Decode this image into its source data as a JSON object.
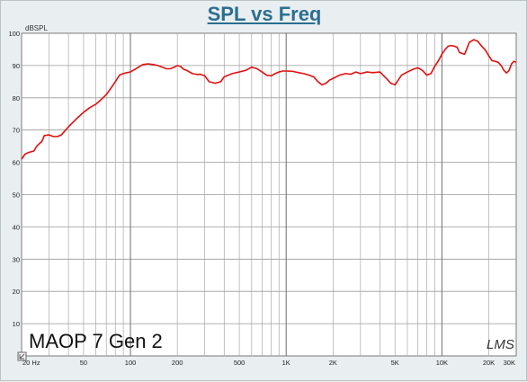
{
  "chart_data": {
    "type": "line",
    "title": "SPL vs Freq",
    "ylabel": "dBSPL",
    "xlabel": "",
    "x_scale": "log",
    "xlim": [
      20,
      30000
    ],
    "ylim": [
      0,
      100
    ],
    "grid": true,
    "y_ticks": [
      10,
      20,
      30,
      40,
      50,
      60,
      70,
      80,
      90,
      100
    ],
    "x_ticks": [
      {
        "value": 20,
        "label": "20 Hz"
      },
      {
        "value": 50,
        "label": "50"
      },
      {
        "value": 100,
        "label": "100"
      },
      {
        "value": 200,
        "label": "200"
      },
      {
        "value": 500,
        "label": "500"
      },
      {
        "value": 1000,
        "label": "1K"
      },
      {
        "value": 2000,
        "label": "2K"
      },
      {
        "value": 5000,
        "label": "5K"
      },
      {
        "value": 10000,
        "label": "10K"
      },
      {
        "value": 20000,
        "label": "20K"
      },
      {
        "value": 30000,
        "label": "30K"
      }
    ],
    "annotation": "MAOP 7 Gen 2",
    "watermark": "LMS",
    "series": [
      {
        "color": "#e01010",
        "x": [
          20,
          21,
          22,
          24,
          25,
          27,
          28,
          30,
          32,
          34,
          36,
          40,
          45,
          50,
          55,
          60,
          65,
          70,
          75,
          80,
          85,
          90,
          95,
          100,
          110,
          120,
          130,
          140,
          150,
          160,
          170,
          180,
          190,
          200,
          210,
          220,
          230,
          250,
          270,
          280,
          300,
          320,
          350,
          380,
          400,
          450,
          500,
          550,
          600,
          650,
          700,
          750,
          800,
          850,
          900,
          950,
          1000,
          1100,
          1200,
          1300,
          1400,
          1500,
          1600,
          1700,
          1800,
          1900,
          2000,
          2200,
          2400,
          2600,
          2800,
          3000,
          3300,
          3600,
          4000,
          4400,
          4700,
          5000,
          5500,
          6000,
          6500,
          7000,
          7500,
          8000,
          8500,
          9000,
          9500,
          10000,
          10500,
          11000,
          11500,
          12000,
          12500,
          13000,
          14000,
          15000,
          16000,
          17000,
          18000,
          19000,
          20000,
          21000,
          22000,
          23000,
          24000,
          25000,
          26000,
          27000,
          28000,
          29000,
          30000
        ],
        "y": [
          61,
          62.5,
          63,
          63.5,
          65,
          66.5,
          68.3,
          68.5,
          68,
          68,
          68.5,
          71,
          73.5,
          75.5,
          77,
          78,
          79.5,
          81,
          83,
          85,
          87,
          87.5,
          87.8,
          88,
          89.2,
          90.3,
          90.5,
          90.3,
          90,
          89.5,
          89,
          89,
          89.4,
          90,
          89.7,
          88.8,
          88.5,
          87.5,
          87.2,
          87.3,
          86.8,
          85,
          84.5,
          85,
          86.5,
          87.5,
          88,
          88.5,
          89.5,
          89,
          88,
          87,
          86.8,
          87.5,
          88,
          88.3,
          88.3,
          88.2,
          87.8,
          87.5,
          87,
          86.5,
          85,
          84,
          84.5,
          85.5,
          86,
          87,
          87.5,
          87.3,
          88,
          87.5,
          88,
          87.8,
          88,
          86,
          84.5,
          84,
          87,
          88,
          88.8,
          89.3,
          88.5,
          87,
          87.5,
          89.8,
          91.5,
          93.5,
          95,
          96,
          96.2,
          96,
          95.7,
          94,
          93.5,
          97.2,
          98,
          97.5,
          96,
          94.8,
          93,
          91.5,
          91.3,
          91,
          90,
          88.5,
          87.7,
          88.5,
          90.5,
          91.3,
          91
        ]
      }
    ]
  }
}
